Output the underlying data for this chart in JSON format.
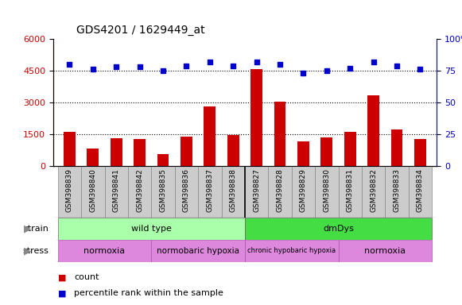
{
  "title": "GDS4201 / 1629449_at",
  "samples": [
    "GSM398839",
    "GSM398840",
    "GSM398841",
    "GSM398842",
    "GSM398835",
    "GSM398836",
    "GSM398837",
    "GSM398838",
    "GSM398827",
    "GSM398828",
    "GSM398829",
    "GSM398830",
    "GSM398831",
    "GSM398832",
    "GSM398833",
    "GSM398834"
  ],
  "counts": [
    1600,
    820,
    1300,
    1270,
    550,
    1380,
    2820,
    1480,
    4580,
    3030,
    1180,
    1340,
    1620,
    3320,
    1730,
    1290
  ],
  "percentile": [
    80,
    76,
    78,
    78,
    75,
    79,
    82,
    79,
    82,
    80,
    73,
    75,
    77,
    82,
    79,
    76
  ],
  "bar_color": "#cc0000",
  "dot_color": "#0000cc",
  "left_ylim": [
    0,
    6000
  ],
  "left_yticks": [
    0,
    1500,
    3000,
    4500,
    6000
  ],
  "right_ylim": [
    0,
    100
  ],
  "right_yticks": [
    0,
    25,
    50,
    75,
    100
  ],
  "strain_wt_color": "#aaffaa",
  "strain_dm_color": "#44dd44",
  "stress_color": "#dd88dd",
  "stress_divider_color": "#cc55cc",
  "sample_bg_color": "#cccccc",
  "bg_color": "#ffffff",
  "title_fontsize": 10,
  "bar_width": 0.5
}
